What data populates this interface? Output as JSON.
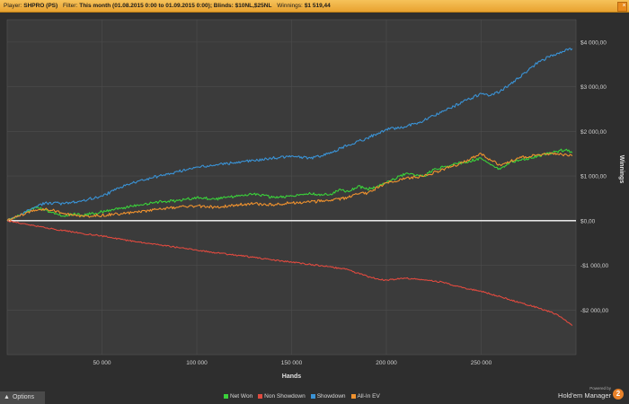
{
  "header": {
    "player_label": "Player:",
    "player_value": "SHPRO (PS)",
    "filter_label": "Filter:",
    "filter_value": "This month (01.08.2015 0:00 to 01.09.2015 0:00); Blinds: $10NL,$25NL",
    "winnings_label": "Winnings:",
    "winnings_value": "$1 519,44",
    "close_glyph": "×"
  },
  "footer": {
    "options_label": "Options",
    "options_icon": "triangle-up-icon",
    "powered_by": "Powered by",
    "brand_name": "Hold'em Manager",
    "brand_number": "2"
  },
  "colors": {
    "net_won": "#3ad13a",
    "non_showdown": "#e04a3f",
    "showdown": "#3a93d6",
    "all_in_ev": "#f0922e",
    "zero_line": "#ffffff",
    "plot_bg": "#3b3b3b",
    "grid": "#4d4d4d"
  },
  "chart_data": {
    "type": "line",
    "xlabel": "Hands",
    "ylabel": "Winnings",
    "xlim": [
      0,
      300000
    ],
    "ylim": [
      -3000,
      4500
    ],
    "x_ticks": [
      50000,
      100000,
      150000,
      200000,
      250000
    ],
    "x_tick_labels": [
      "50 000",
      "100 000",
      "150 000",
      "200 000",
      "250 000"
    ],
    "y_ticks": [
      -2000,
      -1000,
      0,
      1000,
      2000,
      3000,
      4000
    ],
    "y_tick_labels": [
      "-$2 000,00",
      "-$1 000,00",
      "$0,00",
      "$1 000,00",
      "$2 000,00",
      "$3 000,00",
      "$4 000,00"
    ],
    "grid": true,
    "legend_position": "bottom",
    "series": [
      {
        "name": "Net Won",
        "color": "#3ad13a",
        "x": [
          0,
          5000,
          10000,
          15000,
          20000,
          25000,
          30000,
          35000,
          40000,
          50000,
          60000,
          70000,
          80000,
          90000,
          100000,
          110000,
          120000,
          130000,
          140000,
          150000,
          160000,
          170000,
          175000,
          180000,
          185000,
          190000,
          200000,
          210000,
          220000,
          225000,
          230000,
          240000,
          250000,
          255000,
          260000,
          265000,
          270000,
          280000,
          290000,
          295000,
          298000
        ],
        "y": [
          0,
          80,
          200,
          300,
          250,
          150,
          100,
          150,
          120,
          200,
          280,
          350,
          420,
          450,
          520,
          480,
          550,
          600,
          520,
          550,
          600,
          580,
          700,
          650,
          780,
          700,
          850,
          1050,
          1000,
          1150,
          1200,
          1300,
          1400,
          1250,
          1150,
          1300,
          1350,
          1450,
          1550,
          1600,
          1520
        ]
      },
      {
        "name": "Non Showdown",
        "color": "#e04a3f",
        "x": [
          0,
          10000,
          20000,
          30000,
          40000,
          50000,
          60000,
          70000,
          80000,
          90000,
          100000,
          110000,
          120000,
          130000,
          140000,
          150000,
          160000,
          170000,
          180000,
          190000,
          195000,
          200000,
          210000,
          220000,
          230000,
          240000,
          250000,
          260000,
          270000,
          280000,
          290000,
          298000
        ],
        "y": [
          0,
          -80,
          -160,
          -220,
          -290,
          -340,
          -420,
          -480,
          -540,
          -600,
          -660,
          -720,
          -770,
          -820,
          -880,
          -930,
          -980,
          -1030,
          -1100,
          -1250,
          -1300,
          -1330,
          -1290,
          -1330,
          -1380,
          -1500,
          -1580,
          -1700,
          -1830,
          -1950,
          -2100,
          -2350
        ]
      },
      {
        "name": "Showdown",
        "color": "#3a93d6",
        "x": [
          0,
          5000,
          10000,
          20000,
          30000,
          40000,
          50000,
          60000,
          70000,
          80000,
          90000,
          100000,
          110000,
          120000,
          130000,
          140000,
          150000,
          160000,
          170000,
          180000,
          190000,
          200000,
          210000,
          220000,
          230000,
          240000,
          250000,
          255000,
          260000,
          270000,
          280000,
          290000,
          298000
        ],
        "y": [
          0,
          100,
          200,
          400,
          380,
          450,
          550,
          750,
          900,
          1000,
          1100,
          1200,
          1250,
          1300,
          1350,
          1400,
          1450,
          1400,
          1500,
          1700,
          1850,
          2050,
          2100,
          2250,
          2450,
          2650,
          2850,
          2800,
          2900,
          3200,
          3550,
          3750,
          3850
        ]
      },
      {
        "name": "All-In EV",
        "color": "#f0922e",
        "x": [
          0,
          5000,
          10000,
          15000,
          20000,
          25000,
          30000,
          40000,
          50000,
          60000,
          70000,
          80000,
          90000,
          100000,
          110000,
          120000,
          130000,
          140000,
          150000,
          160000,
          170000,
          180000,
          185000,
          190000,
          200000,
          210000,
          220000,
          230000,
          240000,
          250000,
          255000,
          260000,
          270000,
          280000,
          290000,
          298000
        ],
        "y": [
          0,
          80,
          180,
          240,
          260,
          220,
          150,
          100,
          120,
          160,
          200,
          260,
          300,
          330,
          300,
          350,
          380,
          360,
          400,
          420,
          450,
          520,
          600,
          620,
          850,
          950,
          1000,
          1150,
          1300,
          1500,
          1350,
          1250,
          1400,
          1480,
          1500,
          1450
        ]
      }
    ]
  }
}
